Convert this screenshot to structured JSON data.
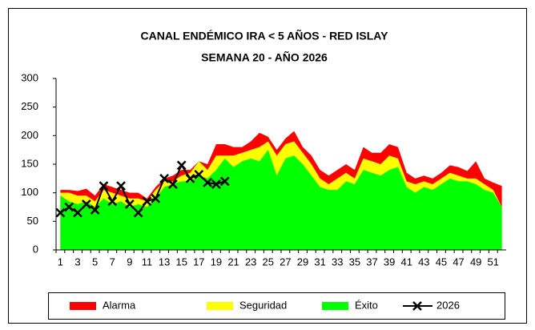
{
  "chart_data": {
    "type": "area",
    "title": "CANAL ENDÉMICO IRA  < 5 AÑOS - RED ISLAY",
    "subtitle": "SEMANA 20 -  AÑO 2026",
    "categories": [
      "1",
      null,
      "3",
      null,
      "5",
      null,
      "7",
      null,
      "9",
      null,
      "11",
      null,
      "13",
      null,
      "15",
      null,
      "17",
      null,
      "19",
      null,
      "21",
      null,
      "23",
      null,
      "25",
      null,
      "27",
      null,
      "29",
      null,
      "31",
      null,
      "33",
      null,
      "35",
      null,
      "37",
      null,
      "39",
      null,
      "41",
      null,
      "43",
      null,
      "45",
      null,
      "47",
      null,
      "49",
      null,
      "51",
      null
    ],
    "ylim": [
      0,
      300
    ],
    "yticks": [
      0,
      50,
      100,
      150,
      200,
      250,
      300
    ],
    "grid": false,
    "series": [
      {
        "name": "Alarma",
        "color": "#ff0000",
        "values": [
          105,
          105,
          103,
          107,
          95,
          115,
          110,
          105,
          100,
          100,
          90,
          110,
          125,
          130,
          140,
          140,
          155,
          150,
          185,
          185,
          180,
          180,
          190,
          205,
          198,
          175,
          195,
          208,
          180,
          165,
          140,
          130,
          140,
          150,
          140,
          180,
          170,
          170,
          185,
          180,
          135,
          125,
          130,
          125,
          135,
          148,
          145,
          138,
          155,
          125,
          118,
          112
        ]
      },
      {
        "name": "Seguridad",
        "color": "#ffff00",
        "values": [
          100,
          100,
          95,
          95,
          85,
          105,
          100,
          95,
          90,
          90,
          85,
          105,
          120,
          120,
          130,
          135,
          155,
          140,
          165,
          165,
          165,
          170,
          175,
          180,
          190,
          165,
          185,
          190,
          170,
          150,
          125,
          115,
          125,
          135,
          125,
          160,
          155,
          150,
          165,
          160,
          120,
          115,
          120,
          115,
          125,
          135,
          130,
          125,
          125,
          115,
          105,
          75
        ]
      },
      {
        "name": "Éxito",
        "color": "#00ff00",
        "values": [
          95,
          85,
          80,
          85,
          75,
          90,
          80,
          85,
          75,
          80,
          75,
          90,
          110,
          115,
          120,
          120,
          130,
          125,
          140,
          160,
          145,
          155,
          160,
          155,
          175,
          130,
          160,
          165,
          150,
          130,
          110,
          105,
          105,
          120,
          115,
          140,
          135,
          130,
          140,
          145,
          110,
          100,
          110,
          105,
          115,
          125,
          120,
          120,
          115,
          105,
          100,
          75
        ]
      },
      {
        "name": "2026",
        "color": "#000000",
        "line": true,
        "values": [
          65,
          75,
          65,
          80,
          70,
          112,
          85,
          112,
          80,
          65,
          85,
          90,
          125,
          115,
          148,
          125,
          132,
          118,
          115,
          120,
          null,
          null,
          null,
          null,
          null,
          null,
          null,
          null,
          null,
          null,
          null,
          null,
          null,
          null,
          null,
          null,
          null,
          null,
          null,
          null,
          null,
          null,
          null,
          null,
          null,
          null,
          null,
          null,
          null,
          null,
          null,
          null
        ]
      }
    ]
  }
}
